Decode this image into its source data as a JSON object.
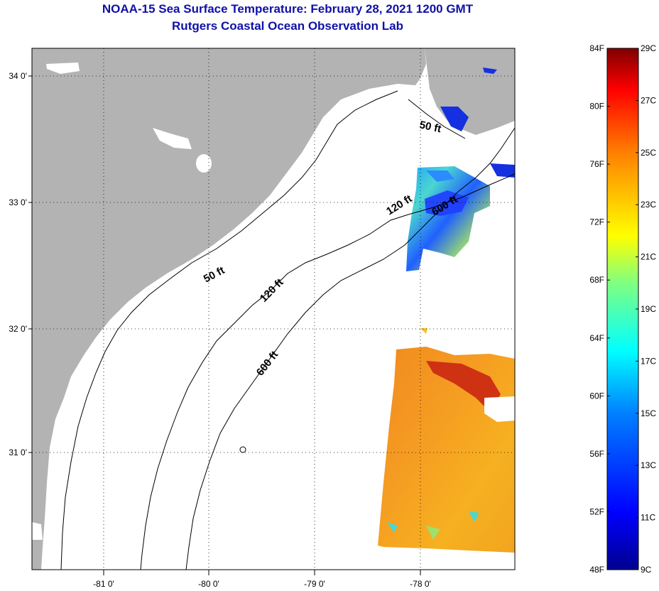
{
  "header": {
    "title": "NOAA-15 Sea Surface Temperature:  February 28, 2021 1200 GMT",
    "subtitle": "Rutgers Coastal Ocean Observation Lab"
  },
  "map": {
    "lon_range": [
      -81.7,
      -77.15
    ],
    "lat_range": [
      30.2,
      34.2
    ],
    "lon_ticks": [
      "-81 0'",
      "-80 0'",
      "-79 0'",
      "-78 0'"
    ],
    "lat_ticks": [
      "34 0'",
      "33 0'",
      "32 0'",
      "31 0'"
    ],
    "land_color": "#b3b3b3",
    "grid": "dotted",
    "contour_labels": {
      "shelf_50_north": "50 ft",
      "shelf_50_south": "50 ft",
      "shelf_120_north": "120 ft",
      "shelf_120_south": "120 ft",
      "shelf_600_north": "600 ft",
      "shelf_600_south": "600 ft"
    }
  },
  "colorbar": {
    "fahrenheit_labels": [
      "84F",
      "80F",
      "76F",
      "72F",
      "68F",
      "64F",
      "60F",
      "56F",
      "52F",
      "48F"
    ],
    "celsius_labels": [
      "29C",
      "27C",
      "25C",
      "23C",
      "21C",
      "19C",
      "17C",
      "15C",
      "13C",
      "11C",
      "9C"
    ],
    "range_c": [
      9,
      29
    ],
    "colormap": "jet",
    "colors": [
      "#00008f",
      "#0000ff",
      "#0080ff",
      "#00ffff",
      "#80ff80",
      "#ffff00",
      "#ff8000",
      "#ff0000",
      "#800000"
    ]
  }
}
